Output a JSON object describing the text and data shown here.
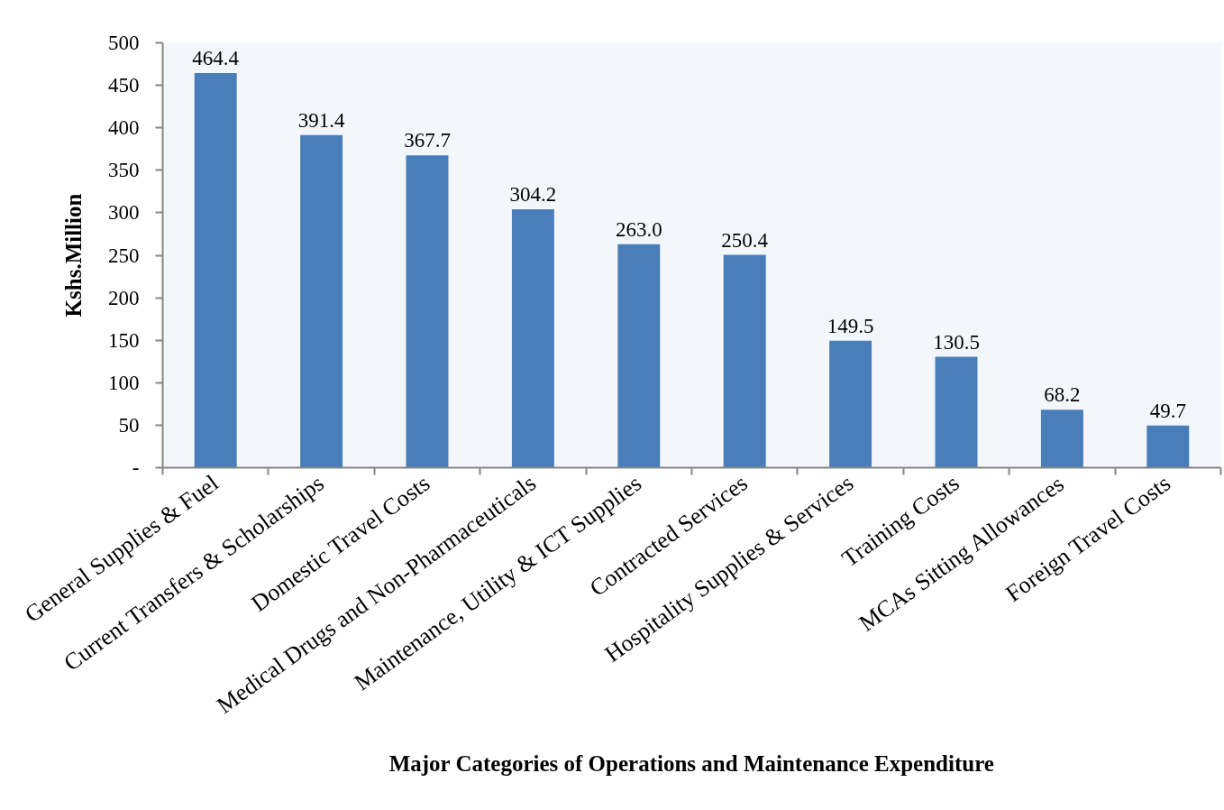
{
  "chart_data": {
    "type": "bar",
    "xlabel": "Major Categories of Operations and Maintenance Expenditure",
    "ylabel": "Kshs.Million",
    "categories": [
      "General Supplies & Fuel",
      "Current Transfers & Scholarships",
      "Domestic Travel Costs",
      "Medical Drugs and Non-Pharmaceuticals",
      "Maintenance, Utility & ICT Supplies",
      "Contracted Services",
      "Hospitality Supplies & Services",
      "Training Costs",
      "MCAs Sitting Allowances",
      "Foreign Travel Costs"
    ],
    "values": [
      464.4,
      391.4,
      367.7,
      304.2,
      263.0,
      250.4,
      149.5,
      130.5,
      68.2,
      49.7
    ],
    "value_labels": [
      "464.4",
      "391.4",
      "367.7",
      "304.2",
      "263.0",
      "250.4",
      "149.5",
      "130.5",
      "68.2",
      "49.7"
    ],
    "color": "#4a7ebb",
    "ylim": [
      0,
      500
    ],
    "yticks": [
      {
        "value": 0,
        "label": "-"
      },
      50,
      100,
      150,
      200,
      250,
      300,
      350,
      400,
      450,
      500
    ],
    "grid": false
  }
}
